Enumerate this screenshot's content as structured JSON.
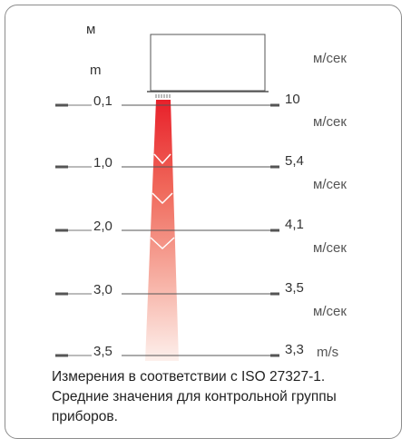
{
  "diagram": {
    "left_unit_ru": "м",
    "left_unit_en": "m",
    "heights": [
      "0,1",
      "1,0",
      "2,0",
      "3,0",
      "3,5"
    ],
    "speeds": [
      "10",
      "5,4",
      "4,1",
      "3,5",
      "3,3"
    ],
    "speed_units": [
      "м/сек",
      "м/сек",
      "м/сек",
      "м/сек",
      "м/сек",
      "m/s"
    ],
    "colors": {
      "beam_top": "#e8202a",
      "beam_bottom": "#fbe6e2",
      "line": "#555555"
    }
  },
  "note": {
    "lines": [
      "Измерения в соответствии с ISO 27327-1.",
      "Средние значения для контрольной группы",
      "приборов."
    ]
  }
}
